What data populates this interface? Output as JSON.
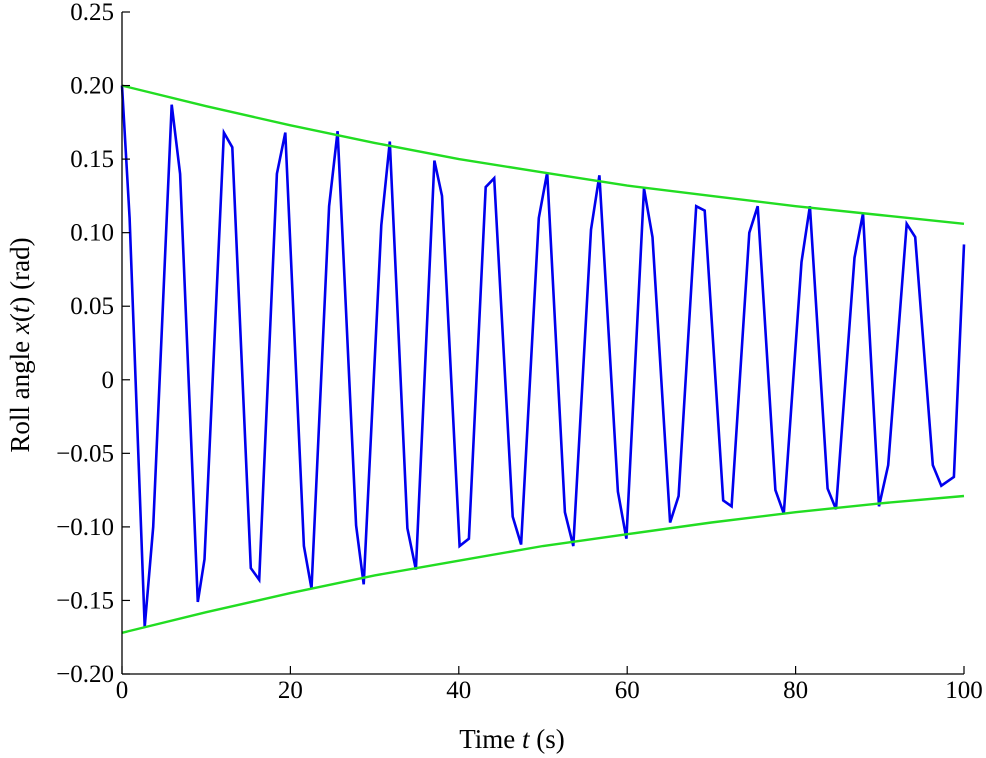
{
  "chart_data": {
    "type": "line",
    "title": "",
    "xlabel": {
      "pre": "Time ",
      "italic": "t",
      "post": " (s)"
    },
    "ylabel": {
      "pre": "Roll angle ",
      "italic": "x",
      "mid": "(",
      "italic2": "t",
      "post": ") (rad)"
    },
    "xlim": [
      0,
      100
    ],
    "ylim": [
      -0.2,
      0.25
    ],
    "xticks": [
      0,
      20,
      40,
      60,
      80,
      100
    ],
    "xtick_labels": [
      "0",
      "20",
      "40",
      "60",
      "80",
      "100"
    ],
    "yticks": [
      -0.2,
      -0.15,
      -0.1,
      -0.05,
      0,
      0.05,
      0.1,
      0.15,
      0.2,
      0.25
    ],
    "ytick_labels": [
      "−0.20",
      "−0.15",
      "−0.10",
      "−0.05",
      "0",
      "0.05",
      "0.10",
      "0.15",
      "0.20",
      "0.25"
    ],
    "grid": false,
    "series": [
      {
        "color": "#0000ee",
        "x": [
          0,
          0.9,
          2.7,
          3.7,
          5.9,
          6.9,
          9.0,
          9.8,
          12.1,
          13.1,
          15.3,
          16.3,
          18.4,
          19.4,
          21.6,
          22.5,
          24.6,
          25.6,
          27.8,
          28.7,
          30.8,
          31.8,
          33.9,
          34.9,
          37.1,
          38.0,
          40.1,
          41.2,
          43.2,
          44.2,
          46.4,
          47.4,
          49.5,
          50.5,
          52.6,
          53.6,
          55.7,
          56.7,
          58.9,
          59.9,
          62.0,
          63.0,
          65.1,
          66.1,
          68.2,
          69.2,
          71.4,
          72.4,
          74.5,
          75.5,
          77.6,
          78.6,
          80.7,
          81.7,
          83.8,
          84.8,
          87.0,
          88.0,
          89.9,
          91.0,
          93.2,
          94.2,
          96.3,
          97.3,
          98.8,
          100
        ],
        "y": [
          0.2,
          0.11,
          -0.168,
          -0.1,
          0.187,
          0.14,
          -0.151,
          -0.122,
          0.168,
          0.158,
          -0.128,
          -0.136,
          0.14,
          0.168,
          -0.113,
          -0.142,
          0.118,
          0.169,
          -0.099,
          -0.139,
          0.105,
          0.162,
          -0.101,
          -0.129,
          0.149,
          0.125,
          -0.113,
          -0.108,
          0.131,
          0.137,
          -0.093,
          -0.112,
          0.11,
          0.141,
          -0.09,
          -0.113,
          0.102,
          0.139,
          -0.076,
          -0.108,
          0.13,
          0.097,
          -0.097,
          -0.079,
          0.118,
          0.115,
          -0.082,
          -0.086,
          0.1,
          0.118,
          -0.075,
          -0.091,
          0.08,
          0.118,
          -0.074,
          -0.088,
          0.083,
          0.113,
          -0.086,
          -0.058,
          0.106,
          0.097,
          -0.058,
          -0.072,
          -0.066,
          0.092
        ]
      },
      {
        "color": "#22dd22",
        "x": [
          0,
          10,
          20,
          30,
          40,
          50,
          60,
          70,
          80,
          90,
          100
        ],
        "y": [
          0.2,
          0.186,
          0.173,
          0.161,
          0.15,
          0.141,
          0.132,
          0.125,
          0.118,
          0.112,
          0.106
        ]
      },
      {
        "color": "#22dd22",
        "x": [
          0,
          10,
          20,
          30,
          40,
          50,
          60,
          70,
          80,
          90,
          100
        ],
        "y": [
          -0.172,
          -0.158,
          -0.145,
          -0.133,
          -0.123,
          -0.113,
          -0.105,
          -0.097,
          -0.09,
          -0.084,
          -0.079
        ]
      }
    ]
  }
}
